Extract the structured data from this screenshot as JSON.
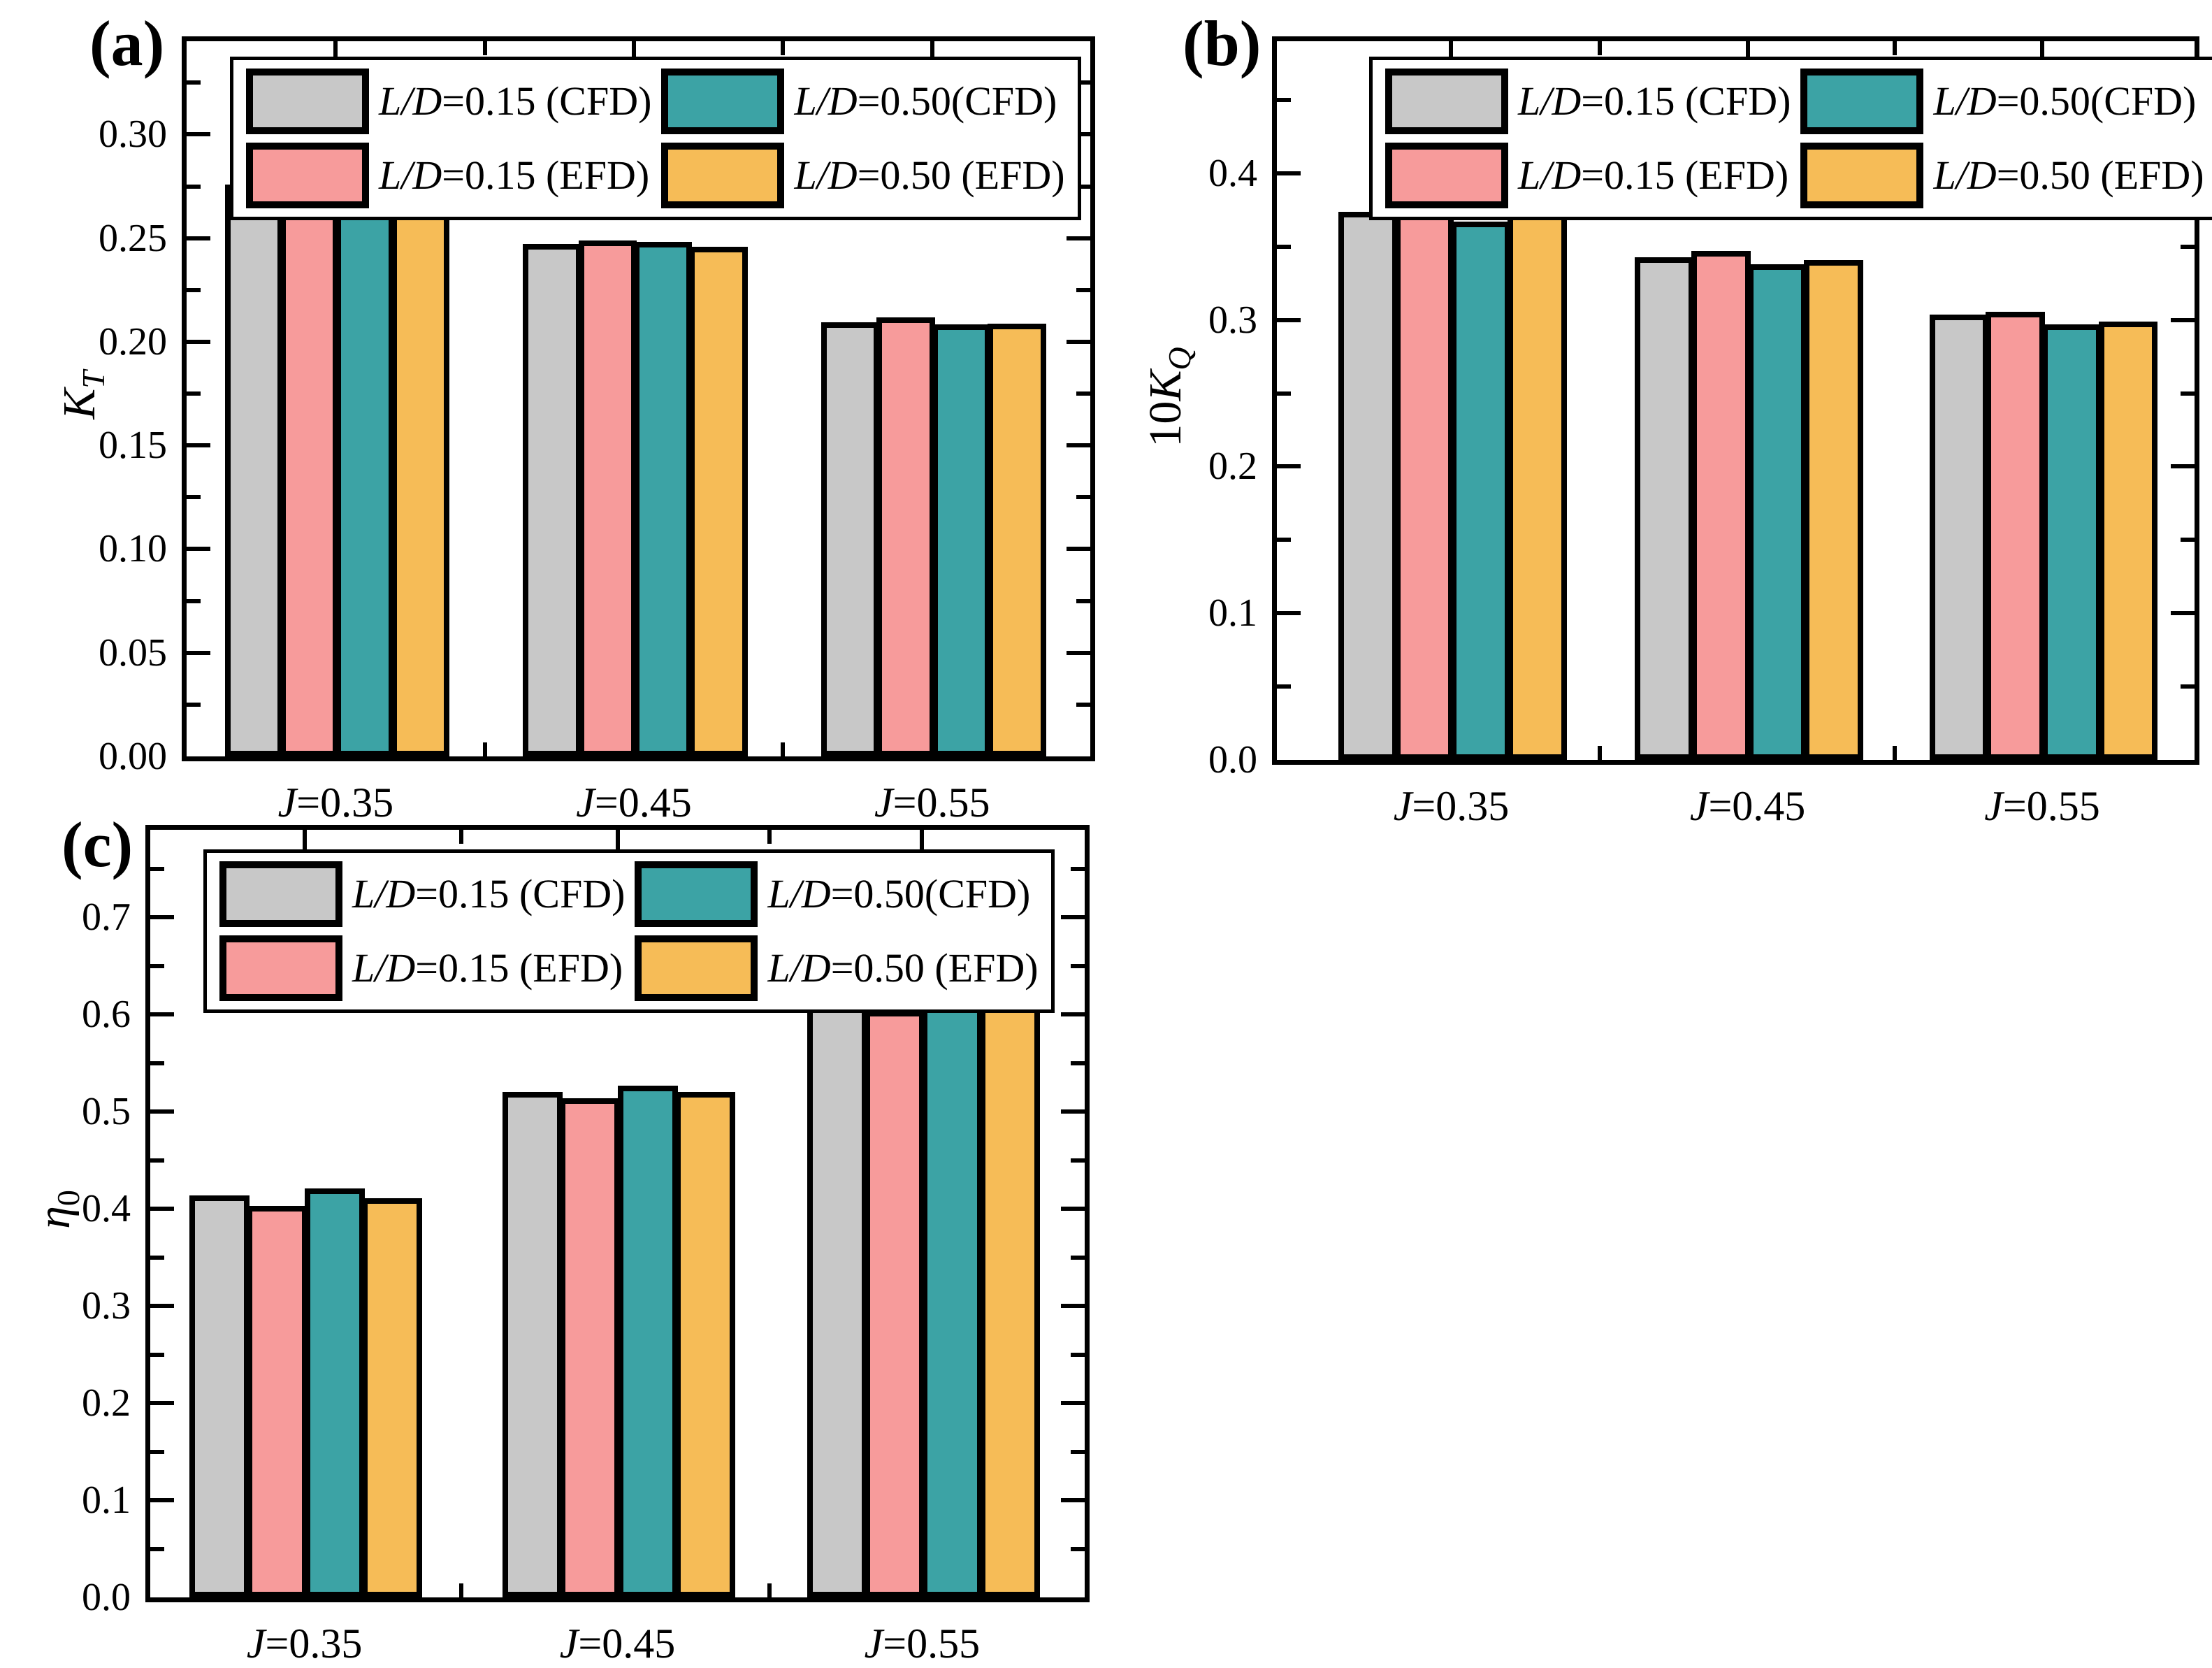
{
  "figure": {
    "background": "#ffffff",
    "axis_color": "#000000",
    "bar_outline_color": "#000000"
  },
  "legend": {
    "items": [
      {
        "id": "cfd15",
        "label_italic": "L/D",
        "label_rest": "=0.15 (CFD)",
        "color": "#C8C8C8"
      },
      {
        "id": "cfd50",
        "label_italic": "L/D",
        "label_rest": "=0.50(CFD)",
        "color": "#3CA3A5"
      },
      {
        "id": "efd15",
        "label_italic": "L/D",
        "label_rest": "=0.15 (EFD)",
        "color": "#F79B9B"
      },
      {
        "id": "efd50",
        "label_italic": "L/D",
        "label_rest": "=0.50 (EFD)",
        "color": "#F6BC57"
      }
    ]
  },
  "chart_data": [
    {
      "id": "a",
      "panel_label": "(a)",
      "type": "bar",
      "title": "",
      "xlabel": "",
      "ylabel": "K_T",
      "ylabel_parts": {
        "prefix": "",
        "main": "K",
        "main_italic": true,
        "sub": "T",
        "sub_italic": true
      },
      "categories": [
        "J=0.35",
        "J=0.45",
        "J=0.55"
      ],
      "ylim": [
        0,
        0.345
      ],
      "yticks": {
        "values": [
          0.0,
          0.05,
          0.1,
          0.15,
          0.2,
          0.25,
          0.3
        ],
        "labels": [
          "0.00",
          "0.05",
          "0.10",
          "0.15",
          "0.20",
          "0.25",
          "0.30"
        ]
      },
      "minor_tick_step": 0.025,
      "grid": false,
      "legend_position": "top",
      "series": [
        {
          "name": "L/D=0.15 (CFD)",
          "color": "#C8C8C8",
          "values": [
            0.2745,
            0.246,
            0.208
          ]
        },
        {
          "name": "L/D=0.15 (EFD)",
          "color": "#F79B9B",
          "values": [
            0.278,
            0.2475,
            0.2105
          ]
        },
        {
          "name": "L/D=0.50(CFD)",
          "color": "#3CA3A5",
          "values": [
            0.2725,
            0.247,
            0.207
          ]
        },
        {
          "name": "L/D=0.50 (EFD)",
          "color": "#F6BC57",
          "values": [
            0.2745,
            0.2445,
            0.2075
          ]
        }
      ],
      "group_centers": [
        0.165,
        0.495,
        0.825
      ]
    },
    {
      "id": "b",
      "panel_label": "(b)",
      "type": "bar",
      "title": "",
      "xlabel": "",
      "ylabel": "10K_Q",
      "ylabel_parts": {
        "prefix": "10",
        "main": "K",
        "main_italic": true,
        "sub": "Q",
        "sub_italic": true
      },
      "categories": [
        "J=0.35",
        "J=0.45",
        "J=0.55"
      ],
      "ylim": [
        0,
        0.49
      ],
      "yticks": {
        "values": [
          0.0,
          0.1,
          0.2,
          0.3,
          0.4
        ],
        "labels": [
          "0.0",
          "0.1",
          "0.2",
          "0.3",
          "0.4"
        ]
      },
      "minor_tick_step": 0.05,
      "grid": false,
      "legend_position": "top",
      "series": [
        {
          "name": "L/D=0.15 (CFD)",
          "color": "#C8C8C8",
          "values": [
            0.372,
            0.341,
            0.3015
          ]
        },
        {
          "name": "L/D=0.15 (EFD)",
          "color": "#F79B9B",
          "values": [
            0.3825,
            0.345,
            0.3035
          ]
        },
        {
          "name": "L/D=0.50(CFD)",
          "color": "#3CA3A5",
          "values": [
            0.365,
            0.336,
            0.295
          ]
        },
        {
          "name": "L/D=0.50 (EFD)",
          "color": "#F6BC57",
          "values": [
            0.376,
            0.339,
            0.297
          ]
        }
      ],
      "group_centers": [
        0.19,
        0.513,
        0.834
      ]
    },
    {
      "id": "c",
      "panel_label": "(c)",
      "type": "bar",
      "title": "",
      "xlabel": "",
      "ylabel": "η_0",
      "ylabel_parts": {
        "prefix": "",
        "main": "η",
        "main_italic": true,
        "sub": "0",
        "sub_italic": false
      },
      "categories": [
        "J=0.35",
        "J=0.45",
        "J=0.55"
      ],
      "ylim": [
        0,
        0.79
      ],
      "yticks": {
        "values": [
          0.0,
          0.1,
          0.2,
          0.3,
          0.4,
          0.5,
          0.6,
          0.7
        ],
        "labels": [
          "0.0",
          "0.1",
          "0.2",
          "0.3",
          "0.4",
          "0.5",
          "0.6",
          "0.7"
        ]
      },
      "minor_tick_step": 0.05,
      "grid": false,
      "legend_position": "top",
      "series": [
        {
          "name": "L/D=0.15 (CFD)",
          "color": "#C8C8C8",
          "values": [
            0.411,
            0.517,
            0.605
          ]
        },
        {
          "name": "L/D=0.15 (EFD)",
          "color": "#F79B9B",
          "values": [
            0.4,
            0.511,
            0.601
          ]
        },
        {
          "name": "L/D=0.50(CFD)",
          "color": "#3CA3A5",
          "values": [
            0.418,
            0.524,
            0.617
          ]
        },
        {
          "name": "L/D=0.50 (EFD)",
          "color": "#F6BC57",
          "values": [
            0.408,
            0.5175,
            0.614
          ]
        }
      ],
      "group_centers": [
        0.165,
        0.5,
        0.826
      ]
    }
  ]
}
